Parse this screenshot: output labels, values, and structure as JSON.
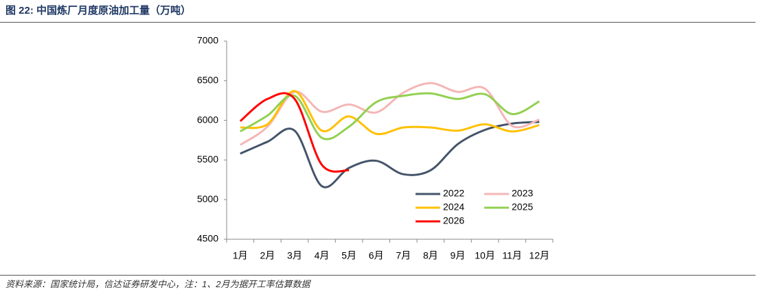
{
  "chart_data": {
    "type": "line",
    "title": "图 22:  中国炼厂月度原油加工量（万吨）",
    "source": "资料来源：国家统计局，信达证券研发中心，注：1、2月为据开工率估算数据",
    "categories": [
      "1月",
      "2月",
      "3月",
      "4月",
      "5月",
      "6月",
      "7月",
      "8月",
      "9月",
      "10月",
      "11月",
      "12月"
    ],
    "ylim": [
      4500,
      7000
    ],
    "yticks": [
      4500,
      5000,
      5500,
      6000,
      6500,
      7000
    ],
    "grid": false,
    "smooth": true,
    "legend": "lower right",
    "series": [
      {
        "name": "2022",
        "color": "#44546a",
        "values": [
          5580,
          5730,
          5870,
          5170,
          5400,
          5490,
          5320,
          5370,
          5700,
          5880,
          5960,
          5980
        ]
      },
      {
        "name": "2023",
        "color": "#f4b6b6",
        "values": [
          5690,
          5920,
          6360,
          6110,
          6200,
          6100,
          6350,
          6470,
          6360,
          6400,
          5930,
          6010
        ]
      },
      {
        "name": "2024",
        "color": "#ffc000",
        "values": [
          5910,
          5950,
          6370,
          5870,
          6050,
          5830,
          5910,
          5910,
          5870,
          5950,
          5860,
          5940
        ]
      },
      {
        "name": "2025",
        "color": "#92d050",
        "values": [
          5860,
          6060,
          6310,
          5780,
          5920,
          6230,
          6310,
          6340,
          6270,
          6330,
          6080,
          6240
        ]
      },
      {
        "name": "2026",
        "color": "#ff0000",
        "values": [
          5990,
          6270,
          6270,
          5440,
          5370,
          null,
          null,
          null,
          null,
          null,
          null,
          null
        ]
      }
    ]
  }
}
